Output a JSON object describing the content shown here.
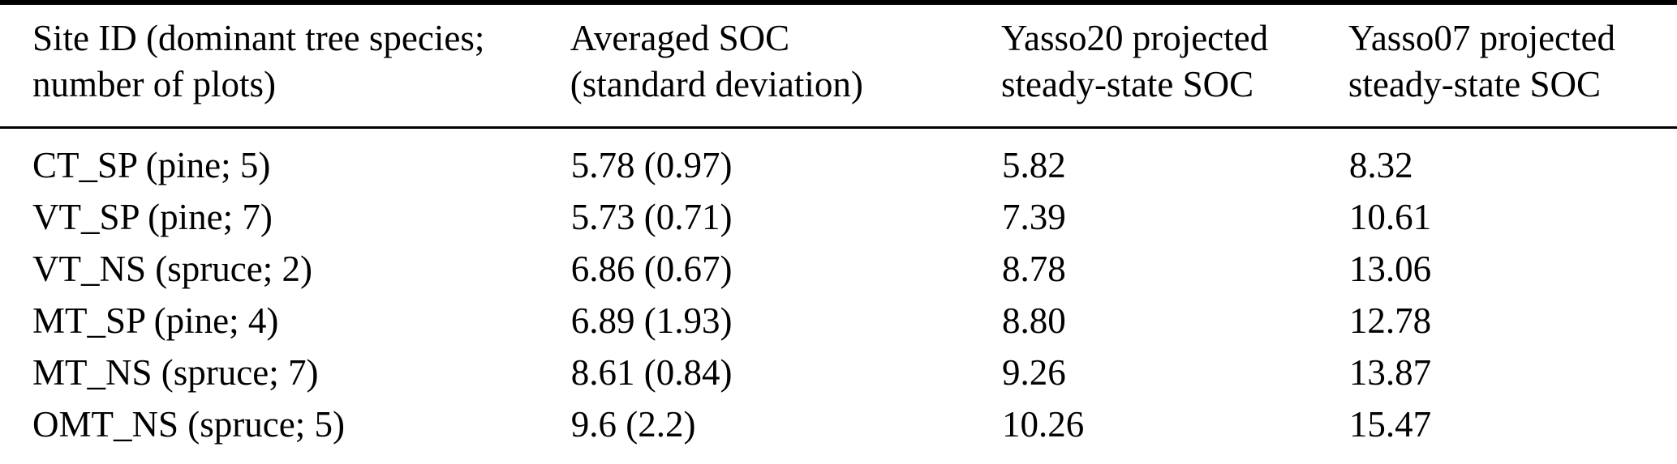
{
  "colors": {
    "background": "#ffffff",
    "text": "#000000",
    "rule": "#000000"
  },
  "table": {
    "columns": [
      {
        "line1": "Site ID (dominant tree species;",
        "line2": "number of plots)"
      },
      {
        "line1": "Averaged SOC",
        "line2": "(standard deviation)"
      },
      {
        "line1": "Yasso20 projected",
        "line2": "steady-state SOC"
      },
      {
        "line1": "Yasso07 projected",
        "line2": "steady-state SOC"
      }
    ],
    "rows": [
      [
        "CT_SP (pine; 5)",
        "5.78 (0.97)",
        "5.82",
        "8.32"
      ],
      [
        "VT_SP (pine; 7)",
        "5.73 (0.71)",
        "7.39",
        "10.61"
      ],
      [
        "VT_NS (spruce; 2)",
        "6.86 (0.67)",
        "8.78",
        "13.06"
      ],
      [
        "MT_SP (pine; 4)",
        "6.89 (1.93)",
        "8.80",
        "12.78"
      ],
      [
        "MT_NS (spruce; 7)",
        "8.61 (0.84)",
        "9.26",
        "13.87"
      ],
      [
        "OMT_NS (spruce; 5)",
        "9.6 (2.2)",
        "10.26",
        "15.47"
      ]
    ]
  }
}
